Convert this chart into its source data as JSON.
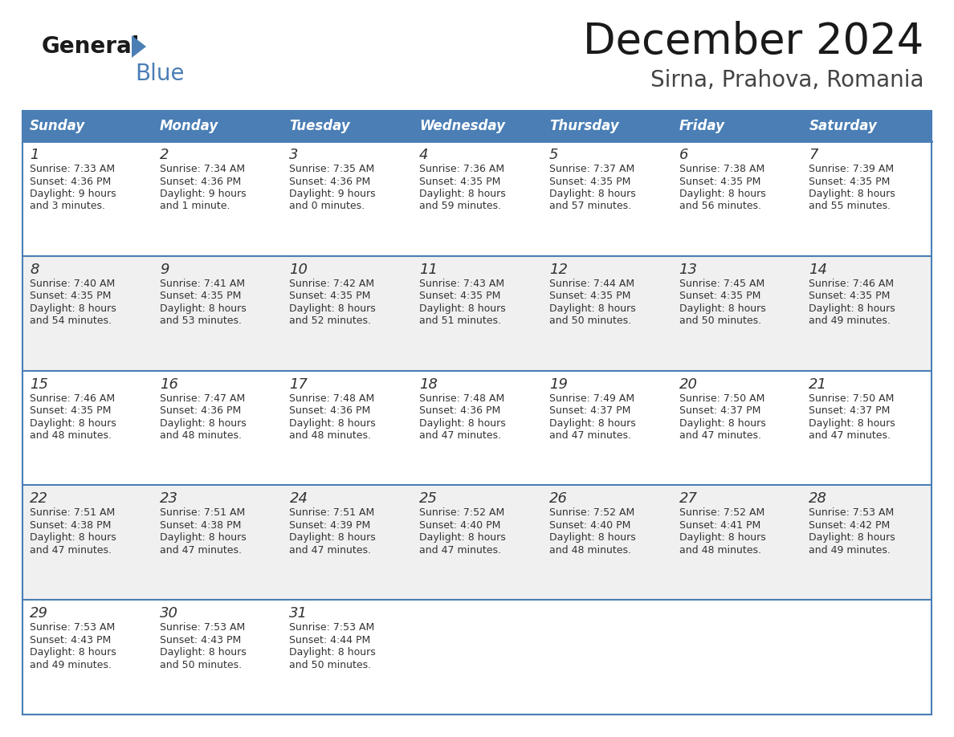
{
  "title": "December 2024",
  "subtitle": "Sirna, Prahova, Romania",
  "header_bg": "#4a7eb5",
  "header_text": "#ffffff",
  "cell_bg_white": "#ffffff",
  "cell_bg_gray": "#f0f0f0",
  "border_color": "#4a7eb5",
  "sep_line_color": "#6a9fd0",
  "text_color": "#333333",
  "days_of_week": [
    "Sunday",
    "Monday",
    "Tuesday",
    "Wednesday",
    "Thursday",
    "Friday",
    "Saturday"
  ],
  "weeks": [
    [
      {
        "day": "1",
        "sunrise": "7:33 AM",
        "sunset": "4:36 PM",
        "daylight1": "9 hours",
        "daylight2": "and 3 minutes."
      },
      {
        "day": "2",
        "sunrise": "7:34 AM",
        "sunset": "4:36 PM",
        "daylight1": "9 hours",
        "daylight2": "and 1 minute."
      },
      {
        "day": "3",
        "sunrise": "7:35 AM",
        "sunset": "4:36 PM",
        "daylight1": "9 hours",
        "daylight2": "and 0 minutes."
      },
      {
        "day": "4",
        "sunrise": "7:36 AM",
        "sunset": "4:35 PM",
        "daylight1": "8 hours",
        "daylight2": "and 59 minutes."
      },
      {
        "day": "5",
        "sunrise": "7:37 AM",
        "sunset": "4:35 PM",
        "daylight1": "8 hours",
        "daylight2": "and 57 minutes."
      },
      {
        "day": "6",
        "sunrise": "7:38 AM",
        "sunset": "4:35 PM",
        "daylight1": "8 hours",
        "daylight2": "and 56 minutes."
      },
      {
        "day": "7",
        "sunrise": "7:39 AM",
        "sunset": "4:35 PM",
        "daylight1": "8 hours",
        "daylight2": "and 55 minutes."
      }
    ],
    [
      {
        "day": "8",
        "sunrise": "7:40 AM",
        "sunset": "4:35 PM",
        "daylight1": "8 hours",
        "daylight2": "and 54 minutes."
      },
      {
        "day": "9",
        "sunrise": "7:41 AM",
        "sunset": "4:35 PM",
        "daylight1": "8 hours",
        "daylight2": "and 53 minutes."
      },
      {
        "day": "10",
        "sunrise": "7:42 AM",
        "sunset": "4:35 PM",
        "daylight1": "8 hours",
        "daylight2": "and 52 minutes."
      },
      {
        "day": "11",
        "sunrise": "7:43 AM",
        "sunset": "4:35 PM",
        "daylight1": "8 hours",
        "daylight2": "and 51 minutes."
      },
      {
        "day": "12",
        "sunrise": "7:44 AM",
        "sunset": "4:35 PM",
        "daylight1": "8 hours",
        "daylight2": "and 50 minutes."
      },
      {
        "day": "13",
        "sunrise": "7:45 AM",
        "sunset": "4:35 PM",
        "daylight1": "8 hours",
        "daylight2": "and 50 minutes."
      },
      {
        "day": "14",
        "sunrise": "7:46 AM",
        "sunset": "4:35 PM",
        "daylight1": "8 hours",
        "daylight2": "and 49 minutes."
      }
    ],
    [
      {
        "day": "15",
        "sunrise": "7:46 AM",
        "sunset": "4:35 PM",
        "daylight1": "8 hours",
        "daylight2": "and 48 minutes."
      },
      {
        "day": "16",
        "sunrise": "7:47 AM",
        "sunset": "4:36 PM",
        "daylight1": "8 hours",
        "daylight2": "and 48 minutes."
      },
      {
        "day": "17",
        "sunrise": "7:48 AM",
        "sunset": "4:36 PM",
        "daylight1": "8 hours",
        "daylight2": "and 48 minutes."
      },
      {
        "day": "18",
        "sunrise": "7:48 AM",
        "sunset": "4:36 PM",
        "daylight1": "8 hours",
        "daylight2": "and 47 minutes."
      },
      {
        "day": "19",
        "sunrise": "7:49 AM",
        "sunset": "4:37 PM",
        "daylight1": "8 hours",
        "daylight2": "and 47 minutes."
      },
      {
        "day": "20",
        "sunrise": "7:50 AM",
        "sunset": "4:37 PM",
        "daylight1": "8 hours",
        "daylight2": "and 47 minutes."
      },
      {
        "day": "21",
        "sunrise": "7:50 AM",
        "sunset": "4:37 PM",
        "daylight1": "8 hours",
        "daylight2": "and 47 minutes."
      }
    ],
    [
      {
        "day": "22",
        "sunrise": "7:51 AM",
        "sunset": "4:38 PM",
        "daylight1": "8 hours",
        "daylight2": "and 47 minutes."
      },
      {
        "day": "23",
        "sunrise": "7:51 AM",
        "sunset": "4:38 PM",
        "daylight1": "8 hours",
        "daylight2": "and 47 minutes."
      },
      {
        "day": "24",
        "sunrise": "7:51 AM",
        "sunset": "4:39 PM",
        "daylight1": "8 hours",
        "daylight2": "and 47 minutes."
      },
      {
        "day": "25",
        "sunrise": "7:52 AM",
        "sunset": "4:40 PM",
        "daylight1": "8 hours",
        "daylight2": "and 47 minutes."
      },
      {
        "day": "26",
        "sunrise": "7:52 AM",
        "sunset": "4:40 PM",
        "daylight1": "8 hours",
        "daylight2": "and 48 minutes."
      },
      {
        "day": "27",
        "sunrise": "7:52 AM",
        "sunset": "4:41 PM",
        "daylight1": "8 hours",
        "daylight2": "and 48 minutes."
      },
      {
        "day": "28",
        "sunrise": "7:53 AM",
        "sunset": "4:42 PM",
        "daylight1": "8 hours",
        "daylight2": "and 49 minutes."
      }
    ],
    [
      {
        "day": "29",
        "sunrise": "7:53 AM",
        "sunset": "4:43 PM",
        "daylight1": "8 hours",
        "daylight2": "and 49 minutes."
      },
      {
        "day": "30",
        "sunrise": "7:53 AM",
        "sunset": "4:43 PM",
        "daylight1": "8 hours",
        "daylight2": "and 50 minutes."
      },
      {
        "day": "31",
        "sunrise": "7:53 AM",
        "sunset": "4:44 PM",
        "daylight1": "8 hours",
        "daylight2": "and 50 minutes."
      },
      null,
      null,
      null,
      null
    ]
  ]
}
